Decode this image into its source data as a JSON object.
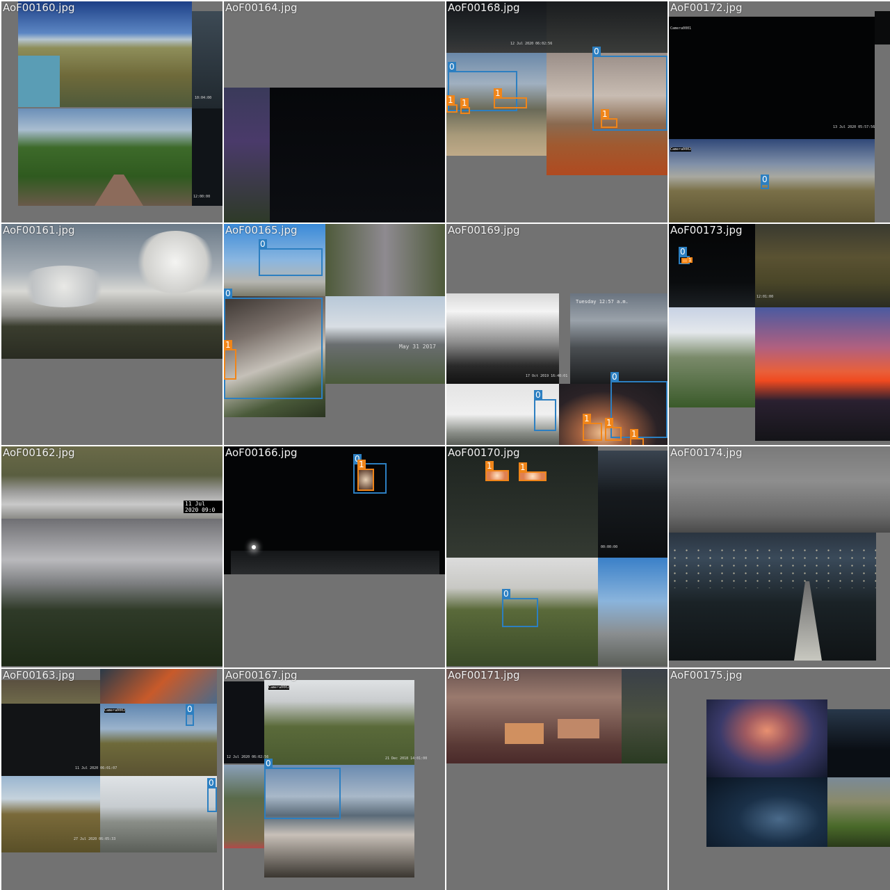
{
  "mosaic": {
    "tiles": [
      {
        "id": "t00",
        "filename": "AoF00160.jpg",
        "col": 0,
        "row": 0,
        "labels": []
      },
      {
        "id": "t01",
        "filename": "AoF00161.jpg",
        "col": 0,
        "row": 1,
        "labels": []
      },
      {
        "id": "t02",
        "filename": "AoF00162.jpg",
        "col": 0,
        "row": 2,
        "labels": []
      },
      {
        "id": "t03",
        "filename": "AoF00163.jpg",
        "col": 0,
        "row": 3,
        "labels": [
          "0",
          "0"
        ]
      },
      {
        "id": "t04",
        "filename": "AoF00164.jpg",
        "col": 1,
        "row": 0,
        "labels": []
      },
      {
        "id": "t05",
        "filename": "AoF00165.jpg",
        "col": 1,
        "row": 1,
        "labels": [
          "0",
          "0",
          "1"
        ]
      },
      {
        "id": "t06",
        "filename": "AoF00166.jpg",
        "col": 1,
        "row": 2,
        "labels": [
          "0",
          "1"
        ]
      },
      {
        "id": "t07",
        "filename": "AoF00167.jpg",
        "col": 1,
        "row": 3,
        "labels": [
          "0"
        ]
      },
      {
        "id": "t08",
        "filename": "AoF00168.jpg",
        "col": 2,
        "row": 0,
        "labels": [
          "0",
          "1",
          "1",
          "1",
          "0",
          "1"
        ]
      },
      {
        "id": "t09",
        "filename": "AoF00169.jpg",
        "col": 2,
        "row": 1,
        "labels": [
          "0",
          "0",
          "1",
          "1",
          "1"
        ]
      },
      {
        "id": "t10",
        "filename": "AoF00170.jpg",
        "col": 2,
        "row": 2,
        "labels": [
          "1",
          "1",
          "0"
        ]
      },
      {
        "id": "t11",
        "filename": "AoF00171.jpg",
        "col": 2,
        "row": 3,
        "labels": []
      },
      {
        "id": "t12",
        "filename": "AoF00172.jpg",
        "col": 3,
        "row": 0,
        "labels": [
          "0"
        ]
      },
      {
        "id": "t13",
        "filename": "AoF00173.jpg",
        "col": 3,
        "row": 1,
        "labels": [
          "0",
          "1"
        ]
      },
      {
        "id": "t14",
        "filename": "AoF00174.jpg",
        "col": 3,
        "row": 2,
        "labels": []
      },
      {
        "id": "t15",
        "filename": "AoF00175.jpg",
        "col": 3,
        "row": 3,
        "labels": []
      }
    ],
    "overlay_text": {
      "t00_ts1": "10:04:00",
      "t00_ts2": "12:00:00",
      "t02_ts": "11 Jul 2020 09:0",
      "t05_ts": "May 31 2017",
      "t08_ts": "12 Jul 2020 06:02:56",
      "t09_ts1": "17 Oct 2019 16:40:01",
      "t09_caption": "Tuesday 12:57 a.m.",
      "t10_ts": "00:00:00",
      "t12_cam1": "Camera0001",
      "t12_cam2": "Camera0002",
      "t12_ts": "13 Jul 2020 05:57:56",
      "t03_cam": "Camera0002",
      "t03_ts1": "11 Jul 2020 06:01:07",
      "t03_ts2": "27 Jul 2020 06:05:33",
      "t07_cam": "Camera0002",
      "t07_ts1": "12 Jul 2020 06:02:56",
      "t07_ts2": "21 Dec 2018 14:01:00",
      "t13_ts": "12:01:00"
    },
    "colors": {
      "background": "#727272",
      "class0_box": "#2c7fc1",
      "class1_box": "#f08519"
    }
  }
}
